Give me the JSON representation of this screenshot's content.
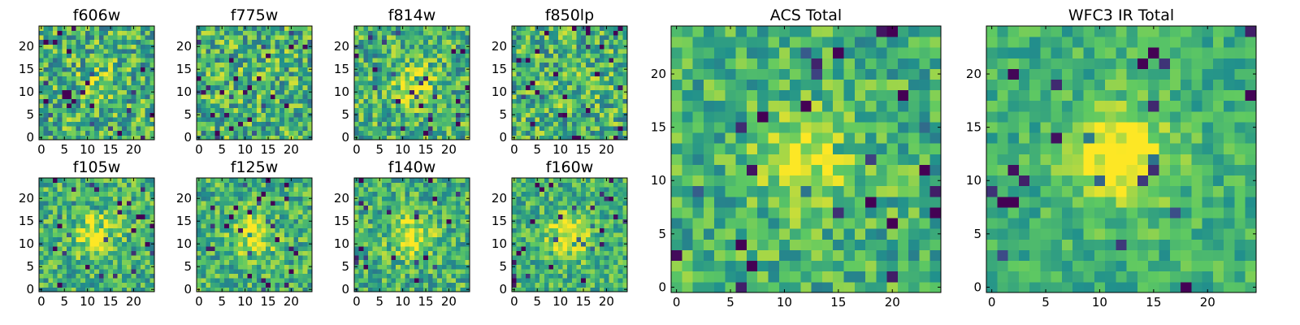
{
  "figure": {
    "background": "#ffffff"
  },
  "chart_data": [
    {
      "type": "heatmap",
      "title": "f606w",
      "grid_size": 25,
      "seed": 11,
      "source_strength": 0.1,
      "noise": 0.3,
      "xticks": [
        "0",
        "5",
        "10",
        "15",
        "20"
      ],
      "yticks": [
        "0",
        "5",
        "10",
        "15",
        "20"
      ],
      "xlim": [
        -0.5,
        24.5
      ],
      "ylim": [
        -0.5,
        24.5
      ],
      "colormap": "viridis"
    },
    {
      "type": "heatmap",
      "title": "f775w",
      "grid_size": 25,
      "seed": 23,
      "source_strength": 0.05,
      "noise": 0.3,
      "xticks": [
        "0",
        "5",
        "10",
        "15",
        "20"
      ],
      "yticks": [
        "0",
        "5",
        "10",
        "15",
        "20"
      ],
      "xlim": [
        -0.5,
        24.5
      ],
      "ylim": [
        -0.5,
        24.5
      ],
      "colormap": "viridis"
    },
    {
      "type": "heatmap",
      "title": "f814w",
      "grid_size": 25,
      "seed": 37,
      "source_strength": 0.3,
      "noise": 0.28,
      "xticks": [
        "0",
        "5",
        "10",
        "15",
        "20"
      ],
      "yticks": [
        "0",
        "5",
        "10",
        "15",
        "20"
      ],
      "xlim": [
        -0.5,
        24.5
      ],
      "ylim": [
        -0.5,
        24.5
      ],
      "colormap": "viridis"
    },
    {
      "type": "heatmap",
      "title": "f850lp",
      "grid_size": 25,
      "seed": 41,
      "source_strength": 0.05,
      "noise": 0.3,
      "xticks": [
        "0",
        "5",
        "10",
        "15",
        "20"
      ],
      "yticks": [
        "0",
        "5",
        "10",
        "15",
        "20"
      ],
      "xlim": [
        -0.5,
        24.5
      ],
      "ylim": [
        -0.5,
        24.5
      ],
      "colormap": "viridis"
    },
    {
      "type": "heatmap",
      "title": "f105w",
      "grid_size": 25,
      "seed": 53,
      "source_strength": 0.35,
      "noise": 0.24,
      "xticks": [
        "0",
        "5",
        "10",
        "15",
        "20"
      ],
      "yticks": [
        "0",
        "5",
        "10",
        "15",
        "20"
      ],
      "xlim": [
        -0.5,
        24.5
      ],
      "ylim": [
        -0.5,
        24.5
      ],
      "colormap": "viridis"
    },
    {
      "type": "heatmap",
      "title": "f125w",
      "grid_size": 25,
      "seed": 67,
      "source_strength": 0.35,
      "noise": 0.24,
      "xticks": [
        "0",
        "5",
        "10",
        "15",
        "20"
      ],
      "yticks": [
        "0",
        "5",
        "10",
        "15",
        "20"
      ],
      "xlim": [
        -0.5,
        24.5
      ],
      "ylim": [
        -0.5,
        24.5
      ],
      "colormap": "viridis"
    },
    {
      "type": "heatmap",
      "title": "f140w",
      "grid_size": 25,
      "seed": 79,
      "source_strength": 0.3,
      "noise": 0.24,
      "xticks": [
        "0",
        "5",
        "10",
        "15",
        "20"
      ],
      "yticks": [
        "0",
        "5",
        "10",
        "15",
        "20"
      ],
      "xlim": [
        -0.5,
        24.5
      ],
      "ylim": [
        -0.5,
        24.5
      ],
      "colormap": "viridis"
    },
    {
      "type": "heatmap",
      "title": "f160w",
      "grid_size": 25,
      "seed": 83,
      "source_strength": 0.4,
      "noise": 0.22,
      "xticks": [
        "0",
        "5",
        "10",
        "15",
        "20"
      ],
      "yticks": [
        "0",
        "5",
        "10",
        "15",
        "20"
      ],
      "xlim": [
        -0.5,
        24.5
      ],
      "ylim": [
        -0.5,
        24.5
      ],
      "colormap": "viridis"
    },
    {
      "type": "heatmap",
      "title": "ACS Total",
      "grid_size": 25,
      "seed": 97,
      "source_strength": 0.35,
      "noise": 0.22,
      "xticks": [
        "0",
        "5",
        "10",
        "15",
        "20"
      ],
      "yticks": [
        "0",
        "5",
        "10",
        "15",
        "20"
      ],
      "xlim": [
        -0.5,
        24.5
      ],
      "ylim": [
        -0.5,
        24.5
      ],
      "colormap": "viridis"
    },
    {
      "type": "heatmap",
      "title": "WFC3 IR Total",
      "grid_size": 25,
      "seed": 101,
      "source_strength": 0.45,
      "noise": 0.16,
      "xticks": [
        "0",
        "5",
        "10",
        "15",
        "20"
      ],
      "yticks": [
        "0",
        "5",
        "10",
        "15",
        "20"
      ],
      "xlim": [
        -0.5,
        24.5
      ],
      "ylim": [
        -0.5,
        24.5
      ],
      "colormap": "viridis"
    }
  ],
  "source_center": [
    12,
    12
  ],
  "colormap_stops": [
    "#440154",
    "#3b528b",
    "#21918c",
    "#5ec962",
    "#fde725"
  ]
}
